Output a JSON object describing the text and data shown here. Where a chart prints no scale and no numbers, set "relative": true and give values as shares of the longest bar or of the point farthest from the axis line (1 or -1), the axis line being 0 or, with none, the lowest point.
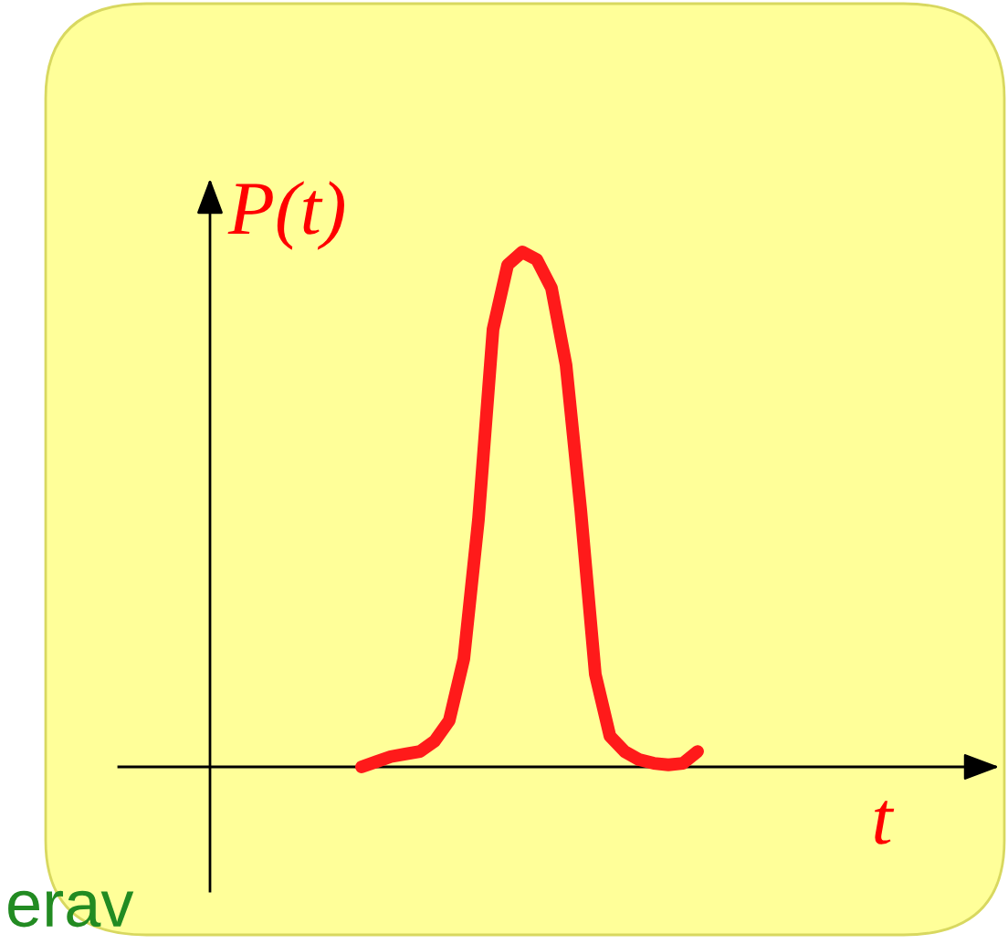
{
  "chart_data": {
    "type": "line",
    "relative": true,
    "xlabel": "t",
    "ylabel": "P(t)",
    "categories": [
      null,
      null,
      null,
      null,
      null,
      null,
      null,
      null,
      null,
      null,
      null,
      null,
      null,
      null,
      null,
      null,
      null,
      null,
      null,
      null,
      null,
      null,
      null,
      null
    ],
    "series": [
      {
        "color": "#ff1a1a",
        "values": [
          0,
          0.01,
          0.02,
          0.025,
          0.03,
          0.05,
          0.09,
          0.21,
          0.48,
          0.85,
          0.975,
          1.0,
          0.985,
          0.93,
          0.78,
          0.5,
          0.18,
          0.06,
          0.03,
          0.014,
          0.007,
          0.004,
          0.007,
          0.03
        ]
      }
    ],
    "annotations": [
      "erav"
    ],
    "legend": false,
    "marker": "none",
    "line_style": "solid"
  }
}
